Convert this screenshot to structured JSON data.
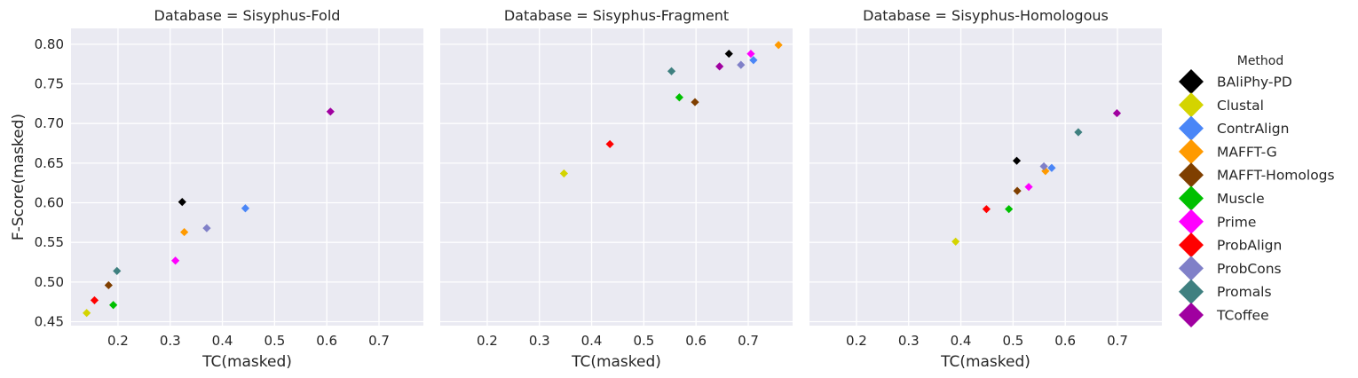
{
  "chart_data": [
    {
      "type": "scatter",
      "title": "Database = Sisyphus-Fold",
      "xlabel": "TC(masked)",
      "ylabel": "F-Score(masked)",
      "xlim": [
        0.11,
        0.785
      ],
      "ylim": [
        0.445,
        0.82
      ],
      "xticks": [
        "0.2",
        "0.3",
        "0.4",
        "0.5",
        "0.6",
        "0.7"
      ],
      "yticks": [
        "0.45",
        "0.50",
        "0.55",
        "0.60",
        "0.65",
        "0.70",
        "0.75",
        "0.80"
      ],
      "grid": true,
      "series": [
        {
          "name": "BAliPhy-PD",
          "x": [
            0.323
          ],
          "y": [
            0.601
          ]
        },
        {
          "name": "Clustal",
          "x": [
            0.14
          ],
          "y": [
            0.461
          ]
        },
        {
          "name": "ContrAlign",
          "x": [
            0.444
          ],
          "y": [
            0.593
          ]
        },
        {
          "name": "MAFFT-G",
          "x": [
            0.327
          ],
          "y": [
            0.563
          ]
        },
        {
          "name": "MAFFT-Homologs",
          "x": [
            0.182
          ],
          "y": [
            0.496
          ]
        },
        {
          "name": "Muscle",
          "x": [
            0.191
          ],
          "y": [
            0.471
          ]
        },
        {
          "name": "Prime",
          "x": [
            0.31
          ],
          "y": [
            0.527
          ]
        },
        {
          "name": "ProbAlign",
          "x": [
            0.155
          ],
          "y": [
            0.477
          ]
        },
        {
          "name": "ProbCons",
          "x": [
            0.37
          ],
          "y": [
            0.568
          ]
        },
        {
          "name": "Promals",
          "x": [
            0.198
          ],
          "y": [
            0.514
          ]
        },
        {
          "name": "TCoffee",
          "x": [
            0.607
          ],
          "y": [
            0.715
          ]
        }
      ]
    },
    {
      "type": "scatter",
      "title": "Database = Sisyphus-Fragment",
      "xlabel": "TC(masked)",
      "ylabel": "",
      "xlim": [
        0.11,
        0.785
      ],
      "ylim": [
        0.445,
        0.82
      ],
      "xticks": [
        "0.2",
        "0.3",
        "0.4",
        "0.5",
        "0.6",
        "0.7"
      ],
      "yticks": [],
      "grid": true,
      "series": [
        {
          "name": "BAliPhy-PD",
          "x": [
            0.663
          ],
          "y": [
            0.788
          ]
        },
        {
          "name": "Clustal",
          "x": [
            0.347
          ],
          "y": [
            0.637
          ]
        },
        {
          "name": "ContrAlign",
          "x": [
            0.71
          ],
          "y": [
            0.78
          ]
        },
        {
          "name": "MAFFT-G",
          "x": [
            0.758
          ],
          "y": [
            0.799
          ]
        },
        {
          "name": "MAFFT-Homologs",
          "x": [
            0.598
          ],
          "y": [
            0.727
          ]
        },
        {
          "name": "Muscle",
          "x": [
            0.568
          ],
          "y": [
            0.733
          ]
        },
        {
          "name": "Prime",
          "x": [
            0.705
          ],
          "y": [
            0.788
          ]
        },
        {
          "name": "ProbAlign",
          "x": [
            0.435
          ],
          "y": [
            0.674
          ]
        },
        {
          "name": "ProbCons",
          "x": [
            0.686
          ],
          "y": [
            0.774
          ]
        },
        {
          "name": "Promals",
          "x": [
            0.553
          ],
          "y": [
            0.766
          ]
        },
        {
          "name": "TCoffee",
          "x": [
            0.645
          ],
          "y": [
            0.772
          ]
        }
      ]
    },
    {
      "type": "scatter",
      "title": "Database = Sisyphus-Homologous",
      "xlabel": "TC(masked)",
      "ylabel": "",
      "xlim": [
        0.11,
        0.785
      ],
      "ylim": [
        0.445,
        0.82
      ],
      "xticks": [
        "0.2",
        "0.3",
        "0.4",
        "0.5",
        "0.6",
        "0.7"
      ],
      "yticks": [],
      "grid": true,
      "series": [
        {
          "name": "BAliPhy-PD",
          "x": [
            0.507
          ],
          "y": [
            0.653
          ]
        },
        {
          "name": "Clustal",
          "x": [
            0.39
          ],
          "y": [
            0.551
          ]
        },
        {
          "name": "ContrAlign",
          "x": [
            0.574
          ],
          "y": [
            0.644
          ]
        },
        {
          "name": "MAFFT-G",
          "x": [
            0.562
          ],
          "y": [
            0.64
          ]
        },
        {
          "name": "MAFFT-Homologs",
          "x": [
            0.508
          ],
          "y": [
            0.615
          ]
        },
        {
          "name": "Muscle",
          "x": [
            0.492
          ],
          "y": [
            0.592
          ]
        },
        {
          "name": "Prime",
          "x": [
            0.53
          ],
          "y": [
            0.62
          ]
        },
        {
          "name": "ProbAlign",
          "x": [
            0.449
          ],
          "y": [
            0.592
          ]
        },
        {
          "name": "ProbCons",
          "x": [
            0.559
          ],
          "y": [
            0.646
          ]
        },
        {
          "name": "Promals",
          "x": [
            0.625
          ],
          "y": [
            0.689
          ]
        },
        {
          "name": "TCoffee",
          "x": [
            0.699
          ],
          "y": [
            0.713
          ]
        }
      ]
    }
  ],
  "legend": {
    "title": "Method",
    "placement": "right",
    "items": [
      {
        "label": "BAliPhy-PD",
        "color": "#000000"
      },
      {
        "label": "Clustal",
        "color": "#d4d400"
      },
      {
        "label": "ContrAlign",
        "color": "#4a86f7"
      },
      {
        "label": "MAFFT-G",
        "color": "#ff9a00"
      },
      {
        "label": "MAFFT-Homologs",
        "color": "#7f3f00"
      },
      {
        "label": "Muscle",
        "color": "#00c000"
      },
      {
        "label": "Prime",
        "color": "#ff00ff"
      },
      {
        "label": "ProbAlign",
        "color": "#ff0000"
      },
      {
        "label": "ProbCons",
        "color": "#8080c8"
      },
      {
        "label": "Promals",
        "color": "#3f8080"
      },
      {
        "label": "TCoffee",
        "color": "#a000a0"
      }
    ]
  },
  "marker": "diamond"
}
